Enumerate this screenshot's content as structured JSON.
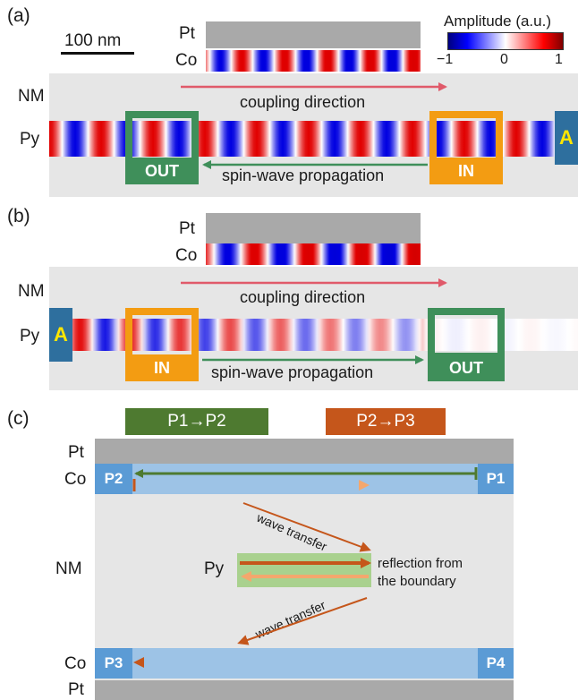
{
  "panel_a": {
    "label": "(a)",
    "scale_bar": "100 nm",
    "pt_label": "Pt",
    "co_label": "Co",
    "nm_label": "NM",
    "py_label": "Py",
    "coupling_text": "coupling direction",
    "propagation_text": "spin-wave propagation",
    "out_label": "OUT",
    "in_label": "IN",
    "a_label": "A"
  },
  "legend": {
    "title": "Amplitude (a.u.)",
    "ticks": [
      "−1",
      "0",
      "1"
    ]
  },
  "panel_b": {
    "label": "(b)",
    "pt_label": "Pt",
    "co_label": "Co",
    "nm_label": "NM",
    "py_label": "Py",
    "coupling_text": "coupling direction",
    "propagation_text": "spin-wave propagation",
    "in_label": "IN",
    "out_label": "OUT",
    "a_label": "A"
  },
  "panel_c": {
    "label": "(c)",
    "header_p1p2": "P1→P2",
    "header_p2p3": "P2→P3",
    "pt_top": "Pt",
    "co_top": "Co",
    "nm_label": "NM",
    "py_label": "Py",
    "co_bottom": "Co",
    "pt_bottom": "Pt",
    "p1": "P1",
    "p2": "P2",
    "p3": "P3",
    "p4": "P4",
    "wave_transfer_top": "wave transfer",
    "wave_transfer_bottom": "wave transfer",
    "reflection_line1": "reflection from",
    "reflection_line2": "the boundary"
  },
  "colors": {
    "green": "#3f8f5a",
    "orange": "#f39c12",
    "dark_green": "#4e7a30",
    "dark_orange": "#c5561b",
    "red_arrow": "#e05a6a",
    "blue_tag": "#2e6f9e",
    "port_blue": "#5b9bd5"
  }
}
